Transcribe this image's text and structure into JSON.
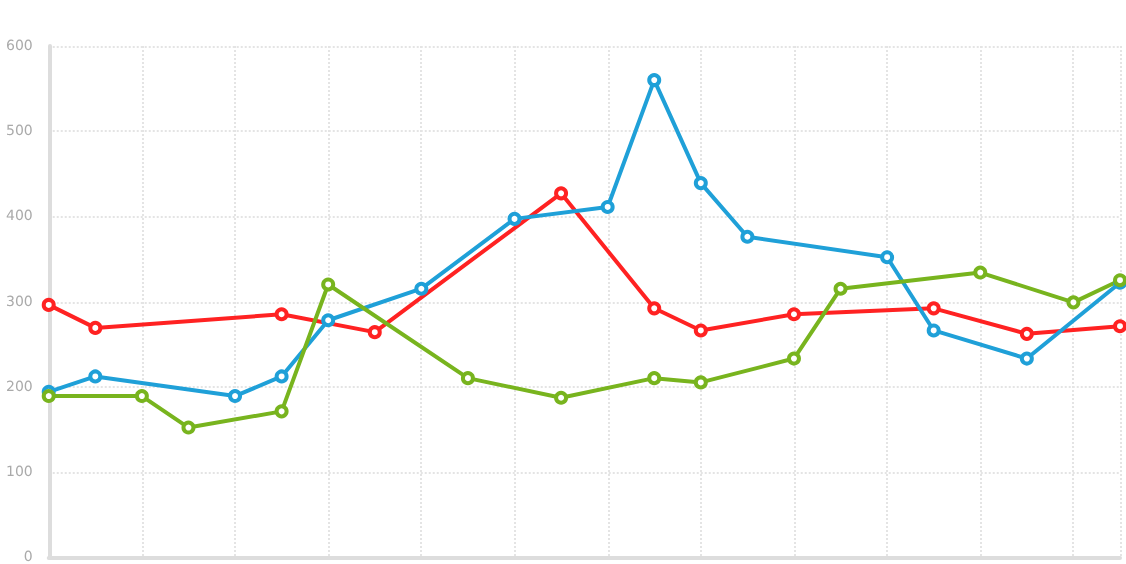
{
  "chart_data": {
    "type": "line",
    "categories": [
      null,
      null,
      null,
      null,
      null,
      null,
      null,
      null,
      null,
      null,
      null,
      null,
      null,
      null,
      null,
      null,
      null,
      null,
      null,
      null,
      null,
      null,
      null,
      null
    ],
    "ylim": [
      0,
      600
    ],
    "yticks": [
      0,
      100,
      200,
      300,
      400,
      500,
      600
    ],
    "tick_labels": "y",
    "grid": true,
    "marker": "circle",
    "line_style": "solid",
    "series": [
      {
        "color": "#ff2222",
        "values": [
          296,
          269,
          null,
          null,
          null,
          285,
          null,
          264,
          null,
          null,
          null,
          427,
          null,
          292,
          266,
          null,
          285,
          null,
          null,
          292,
          null,
          262,
          null,
          271
        ]
      },
      {
        "color": "#1fa0d8",
        "values": [
          194,
          212,
          null,
          null,
          189,
          212,
          278,
          null,
          315,
          null,
          397,
          null,
          411,
          560,
          439,
          376,
          null,
          null,
          352,
          266,
          null,
          233,
          null,
          322
        ]
      },
      {
        "color": "#78b41e",
        "values": [
          189,
          null,
          189,
          152,
          null,
          171,
          320,
          null,
          null,
          210,
          null,
          187,
          null,
          210,
          205,
          null,
          233,
          315,
          null,
          null,
          334,
          null,
          299,
          325
        ]
      }
    ]
  }
}
